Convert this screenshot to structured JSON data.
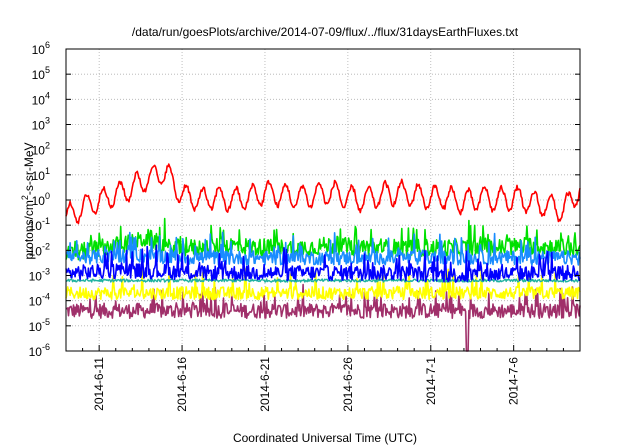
{
  "chart_data": {
    "type": "line",
    "title": "/data/run/goesPlots/archive/2014-07-09/flux/../flux/31daysEarthFluxes.txt",
    "xlabel": "Coordinated Universal Time (UTC)",
    "ylabel": {
      "base": "protons/cm",
      "sup": "2",
      "rest": "-s-sr-MeV"
    },
    "yscale": "log",
    "ylim": [
      -6,
      6
    ],
    "xlim": [
      0,
      31
    ],
    "y_ticks": [
      {
        "exp": -6,
        "base": "10",
        "sup": "-6"
      },
      {
        "exp": -5,
        "base": "10",
        "sup": "-5"
      },
      {
        "exp": -4,
        "base": "10",
        "sup": "-4"
      },
      {
        "exp": -3,
        "base": "10",
        "sup": "-3"
      },
      {
        "exp": -2,
        "base": "10",
        "sup": "-2"
      },
      {
        "exp": -1,
        "base": "10",
        "sup": "-1"
      },
      {
        "exp": 0,
        "base": "10",
        "sup": "0"
      },
      {
        "exp": 1,
        "base": "10",
        "sup": "1"
      },
      {
        "exp": 2,
        "base": "10",
        "sup": "2"
      },
      {
        "exp": 3,
        "base": "10",
        "sup": "3"
      },
      {
        "exp": 4,
        "base": "10",
        "sup": "4"
      },
      {
        "exp": 5,
        "base": "10",
        "sup": "5"
      },
      {
        "exp": 6,
        "base": "10",
        "sup": "6"
      }
    ],
    "x_ticks": [
      {
        "day": 2,
        "label": "2014-6-11"
      },
      {
        "day": 7,
        "label": "2014-6-16"
      },
      {
        "day": 12,
        "label": "2014-6-21"
      },
      {
        "day": 17,
        "label": "2014-6-26"
      },
      {
        "day": 22,
        "label": "2014-7-1"
      },
      {
        "day": 27,
        "label": "2014-7-6"
      }
    ],
    "grid": true,
    "series": [
      {
        "name": "red",
        "color": "#ff0000",
        "description": "diurnally oscillating channel",
        "x": [
          0,
          1,
          2,
          3,
          4,
          5,
          6,
          7,
          8,
          9,
          10,
          11,
          12,
          13,
          14,
          15,
          16,
          17,
          18,
          19,
          20,
          21,
          22,
          23,
          24,
          25,
          26,
          27,
          28,
          29,
          30,
          31
        ],
        "log10_values": [
          -0.7,
          -0.3,
          0.0,
          0.2,
          0.5,
          0.9,
          1.1,
          0.2,
          0.0,
          0.1,
          0.0,
          0.1,
          0.3,
          0.2,
          0.1,
          0.2,
          0.3,
          0.1,
          0.0,
          0.2,
          0.3,
          0.2,
          0.1,
          0.1,
          -0.1,
          0.1,
          0.0,
          0.1,
          -0.1,
          -0.2,
          -0.4,
          0.4
        ]
      },
      {
        "name": "green",
        "color": "#00e000",
        "x": [
          0,
          2,
          4,
          5,
          6,
          8,
          10,
          12,
          14,
          16,
          18,
          20,
          22,
          24,
          25,
          26,
          28,
          30,
          31
        ],
        "log10_values": [
          -2.2,
          -1.9,
          -1.7,
          -1.5,
          -1.9,
          -1.9,
          -1.8,
          -1.9,
          -1.9,
          -1.8,
          -1.9,
          -1.9,
          -1.9,
          -1.9,
          -1.8,
          -1.9,
          -1.8,
          -1.9,
          -1.9
        ]
      },
      {
        "name": "blue-light",
        "color": "#1a8cff",
        "x": [
          0,
          4,
          8,
          12,
          16,
          20,
          24,
          28,
          31
        ],
        "log10_values": [
          -2.3,
          -2.2,
          -2.3,
          -2.3,
          -2.3,
          -2.3,
          -2.3,
          -2.3,
          -2.3
        ]
      },
      {
        "name": "blue",
        "color": "#0000ff",
        "x": [
          0,
          4,
          8,
          12,
          16,
          20,
          24,
          28,
          31
        ],
        "log10_values": [
          -2.9,
          -2.8,
          -2.9,
          -2.9,
          -2.9,
          -2.9,
          -3.0,
          -2.9,
          -2.9
        ]
      },
      {
        "name": "teal",
        "color": "#20b2a0",
        "x": [
          0,
          8,
          16,
          24,
          31
        ],
        "log10_values": [
          -3.2,
          -3.2,
          -3.2,
          -3.2,
          -3.2
        ]
      },
      {
        "name": "yellow",
        "color": "#ffff00",
        "x": [
          0,
          8,
          16,
          24,
          31
        ],
        "log10_values": [
          -3.7,
          -3.7,
          -3.7,
          -3.7,
          -3.7
        ]
      },
      {
        "name": "purple",
        "color": "#a0306a",
        "x": [
          0,
          8,
          16,
          24,
          31
        ],
        "log10_values": [
          -4.4,
          -4.4,
          -4.4,
          -4.4,
          -4.4
        ]
      }
    ],
    "annotations": [
      {
        "note": "dropout spike near 2014-7-4",
        "day": 24.2,
        "log10_min": -6
      }
    ]
  }
}
